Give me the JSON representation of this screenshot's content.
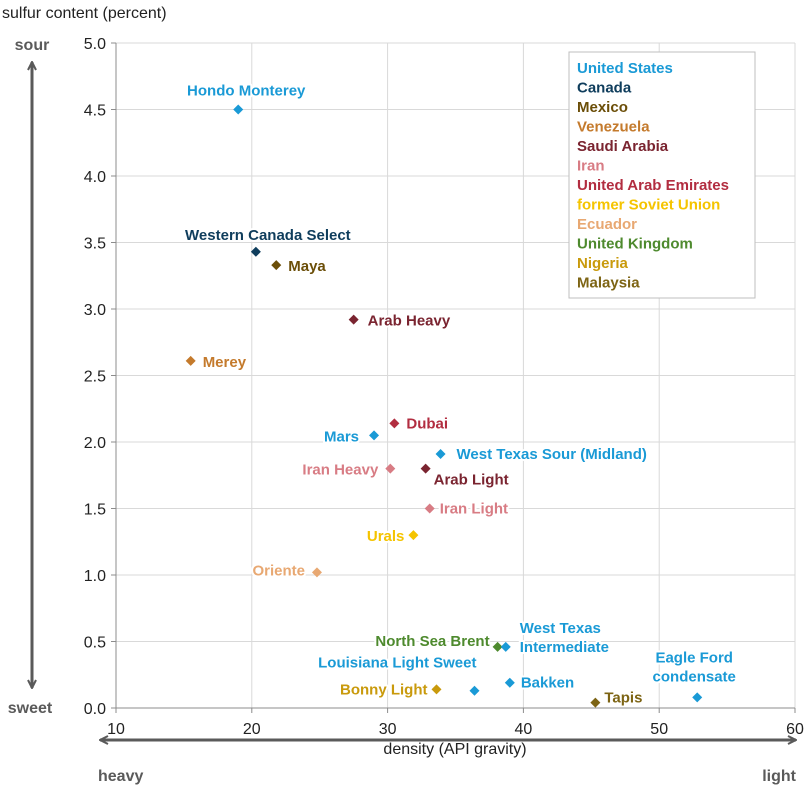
{
  "chart_data": {
    "type": "scatter",
    "title": "",
    "ylabel": "sulfur content (percent)",
    "xlabel": "density (API gravity)",
    "xlim": [
      10,
      60
    ],
    "ylim": [
      0,
      5
    ],
    "xticks": [
      "10",
      "20",
      "30",
      "40",
      "50",
      "60"
    ],
    "yticks": [
      "0.0",
      "0.5",
      "1.0",
      "1.5",
      "2.0",
      "2.5",
      "3.0",
      "3.5",
      "4.0",
      "4.5",
      "5.0"
    ],
    "grid": "horizontal and vertical",
    "y_axis_ends": {
      "top": "sour",
      "bottom": "sweet"
    },
    "x_axis_ends": {
      "left": "heavy",
      "right": "light"
    },
    "legend": [
      {
        "label": "United States",
        "color": "#1a9ad6"
      },
      {
        "label": "Canada",
        "color": "#0f3d5c"
      },
      {
        "label": "Mexico",
        "color": "#6b4e08"
      },
      {
        "label": "Venezuela",
        "color": "#c47a2c"
      },
      {
        "label": "Saudi Arabia",
        "color": "#7a2430"
      },
      {
        "label": "Iran",
        "color": "#d87c84"
      },
      {
        "label": "United Arab Emirates",
        "color": "#b22d40"
      },
      {
        "label": "former Soviet Union",
        "color": "#f5c400"
      },
      {
        "label": "Ecuador",
        "color": "#e8a872"
      },
      {
        "label": "United Kingdom",
        "color": "#4e8a2e"
      },
      {
        "label": "Nigeria",
        "color": "#c99a0c"
      },
      {
        "label": "Malaysia",
        "color": "#7d6414"
      }
    ],
    "legend_position": "top-right",
    "points": [
      {
        "label": "Hondo Monterey",
        "country": "United States",
        "x": 19,
        "y": 4.5
      },
      {
        "label": "Western Canada Select",
        "country": "Canada",
        "x": 20.3,
        "y": 3.43
      },
      {
        "label": "Maya",
        "country": "Mexico",
        "x": 21.8,
        "y": 3.33
      },
      {
        "label": "Arab Heavy",
        "country": "Saudi Arabia",
        "x": 27.5,
        "y": 2.92
      },
      {
        "label": "Merey",
        "country": "Venezuela",
        "x": 15.5,
        "y": 2.61
      },
      {
        "label": "Dubai",
        "country": "United Arab Emirates",
        "x": 30.5,
        "y": 2.14
      },
      {
        "label": "Mars",
        "country": "United States",
        "x": 29,
        "y": 2.05
      },
      {
        "label": "West Texas Sour (Midland)",
        "country": "United States",
        "x": 33.9,
        "y": 1.91
      },
      {
        "label": "Iran Heavy",
        "country": "Iran",
        "x": 30.2,
        "y": 1.8
      },
      {
        "label": "Arab Light",
        "country": "Saudi Arabia",
        "x": 32.8,
        "y": 1.8
      },
      {
        "label": "Iran Light",
        "country": "Iran",
        "x": 33.1,
        "y": 1.5
      },
      {
        "label": "Urals",
        "country": "former Soviet Union",
        "x": 31.9,
        "y": 1.3
      },
      {
        "label": "Oriente",
        "country": "Ecuador",
        "x": 24.8,
        "y": 1.02
      },
      {
        "label": "North Sea Brent",
        "country": "United Kingdom",
        "x": 38.1,
        "y": 0.46
      },
      {
        "label": "West Texas Intermediate",
        "country": "United States",
        "x": 38.7,
        "y": 0.46
      },
      {
        "label": "Louisiana Light Sweet",
        "country": "United States",
        "x": 36.4,
        "y": 0.13
      },
      {
        "label": "Bakken",
        "country": "United States",
        "x": 39,
        "y": 0.19
      },
      {
        "label": "Bonny Light",
        "country": "Nigeria",
        "x": 33.6,
        "y": 0.14
      },
      {
        "label": "Tapis",
        "country": "Malaysia",
        "x": 45.3,
        "y": 0.04
      },
      {
        "label": "Eagle Ford condensate",
        "country": "United States",
        "x": 52.8,
        "y": 0.08
      }
    ]
  }
}
